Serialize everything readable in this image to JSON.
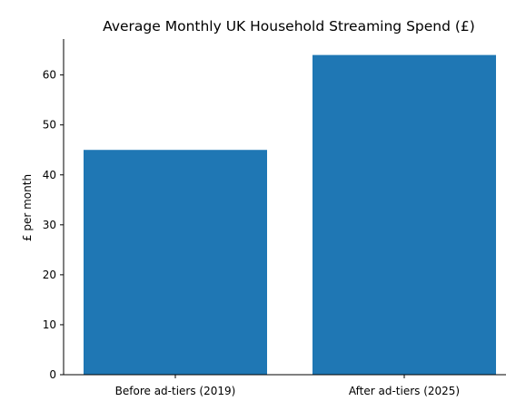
{
  "chart_data": {
    "type": "bar",
    "title": "Average Monthly UK Household Streaming Spend (£)",
    "xlabel": "",
    "ylabel": "£ per month",
    "categories": [
      "Before ad-tiers (2019)",
      "After ad-tiers (2025)"
    ],
    "values": [
      45,
      64
    ],
    "ylim": [
      0,
      67.2
    ],
    "yticks": [
      0,
      10,
      20,
      30,
      40,
      50,
      60
    ],
    "bar_color": "#1f77b4",
    "grid": false,
    "legend": "none"
  }
}
